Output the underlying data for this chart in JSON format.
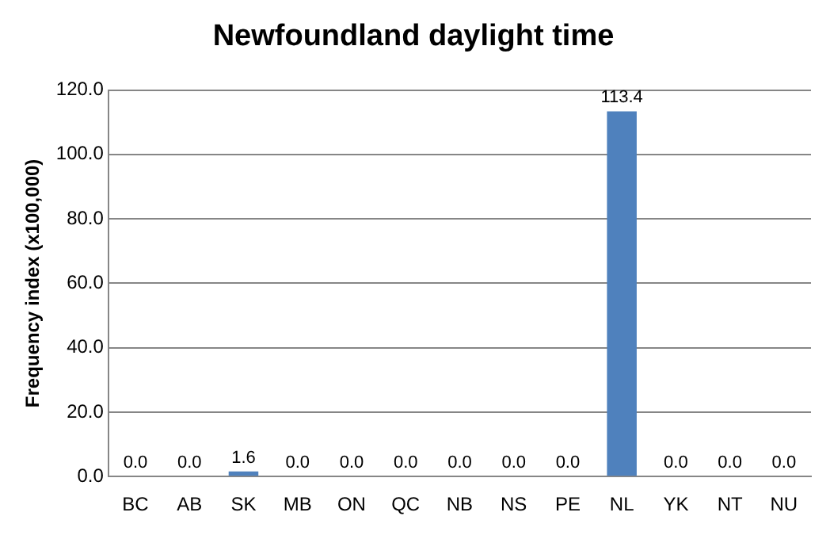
{
  "chart_data": {
    "type": "bar",
    "title": "Newfoundland daylight time",
    "ylabel": "Frequency index (x100,000)",
    "categories": [
      "BC",
      "AB",
      "SK",
      "MB",
      "ON",
      "QC",
      "NB",
      "NS",
      "PE",
      "NL",
      "YK",
      "NT",
      "NU"
    ],
    "values": [
      0.0,
      0.0,
      1.6,
      0.0,
      0.0,
      0.0,
      0.0,
      0.0,
      0.0,
      113.4,
      0.0,
      0.0,
      0.0
    ],
    "color": "#4f81bd",
    "ylim": [
      0,
      120
    ],
    "yticks": [
      {
        "value": 0,
        "label": "0.0"
      },
      {
        "value": 20,
        "label": "20.0"
      },
      {
        "value": 40,
        "label": "40.0"
      },
      {
        "value": 60,
        "label": "60.0"
      },
      {
        "value": 80,
        "label": "80.0"
      },
      {
        "value": 100,
        "label": "100.0"
      },
      {
        "value": 120,
        "label": "120.0"
      }
    ],
    "value_labels": [
      "0.0",
      "0.0",
      "1.6",
      "0.0",
      "0.0",
      "0.0",
      "0.0",
      "0.0",
      "0.0",
      "113.4",
      "0.0",
      "0.0",
      "0.0"
    ],
    "grid": "y",
    "legend": false
  }
}
